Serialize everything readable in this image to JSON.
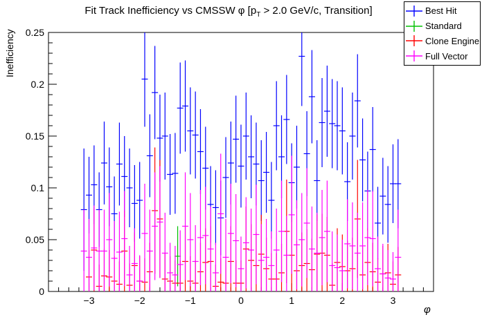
{
  "title": {
    "pre": "Fit Track Inefficiency vs CMSSW φ [p",
    "sub": "T",
    "post": " > 2.0 GeV/c, Transition]"
  },
  "legend": {
    "items": [
      {
        "label": "Best Hit",
        "color": "#0000ff"
      },
      {
        "label": "Standard",
        "color": "#00c000"
      },
      {
        "label": "Clone Engine",
        "color": "#ff0000"
      },
      {
        "label": "Full Vector",
        "color": "#ff00ff"
      }
    ]
  },
  "axes": {
    "x": {
      "label": "φ",
      "min": -3.8,
      "max": 3.8,
      "major_ticks": [
        -3,
        -2,
        -1,
        0,
        1,
        2,
        3
      ],
      "tick_labels": [
        "−3",
        "−2",
        "−1",
        "0",
        "1",
        "2",
        "3"
      ],
      "minor_step": 0.2
    },
    "y": {
      "label": "Inefficiency",
      "min": 0,
      "max": 0.25,
      "major_ticks": [
        0,
        0.05,
        0.1,
        0.15,
        0.2,
        0.25
      ],
      "tick_labels": [
        "0",
        "0.05",
        "0.1",
        "0.15",
        "0.2",
        "0.25"
      ],
      "minor_step": 0.01
    }
  },
  "chart_data": {
    "type": "scatter",
    "title": "Fit Track Inefficiency vs CMSSW φ [pT > 2.0 GeV/c, Transition]",
    "xlabel": "φ",
    "ylabel": "Inefficiency",
    "xlim": [
      -3.8,
      3.8
    ],
    "ylim": [
      0,
      0.25
    ],
    "grid": false,
    "legend_position": "top-right",
    "point_format": [
      "phi",
      "inefficiency",
      "error"
    ],
    "series": [
      {
        "name": "Best Hit",
        "color": "#0000ff",
        "points": [
          [
            -3.1,
            0.079,
            0.059
          ],
          [
            -3.0,
            0.093,
            0.037
          ],
          [
            -2.9,
            0.103,
            0.038
          ],
          [
            -2.8,
            0.079,
            0.036
          ],
          [
            -2.7,
            0.124,
            0.04
          ],
          [
            -2.6,
            0.101,
            0.038
          ],
          [
            -2.5,
            0.075,
            0.036
          ],
          [
            -2.4,
            0.123,
            0.04
          ],
          [
            -2.3,
            0.111,
            0.039
          ],
          [
            -2.2,
            0.1,
            0.038
          ],
          [
            -2.1,
            0.085,
            0.037
          ],
          [
            -2.0,
            0.088,
            0.037
          ],
          [
            -1.9,
            0.205,
            0.046
          ],
          [
            -1.8,
            0.131,
            0.04
          ],
          [
            -1.7,
            0.192,
            0.045
          ],
          [
            -1.6,
            0.148,
            0.042
          ],
          [
            -1.5,
            0.15,
            0.042
          ],
          [
            -1.4,
            0.113,
            0.039
          ],
          [
            -1.3,
            0.114,
            0.039
          ],
          [
            -1.2,
            0.177,
            0.044
          ],
          [
            -1.1,
            0.179,
            0.044
          ],
          [
            -1.0,
            0.155,
            0.042
          ],
          [
            -0.9,
            0.151,
            0.042
          ],
          [
            -0.8,
            0.135,
            0.041
          ],
          [
            -0.7,
            0.119,
            0.04
          ],
          [
            -0.6,
            0.084,
            0.037
          ],
          [
            -0.5,
            0.081,
            0.036
          ],
          [
            -0.4,
            0.071,
            0.036
          ],
          [
            -0.3,
            0.11,
            0.039
          ],
          [
            -0.2,
            0.124,
            0.04
          ],
          [
            -0.1,
            0.147,
            0.042
          ],
          [
            0.0,
            0.121,
            0.04
          ],
          [
            0.1,
            0.15,
            0.042
          ],
          [
            0.2,
            0.13,
            0.04
          ],
          [
            0.3,
            0.123,
            0.04
          ],
          [
            0.4,
            0.107,
            0.039
          ],
          [
            0.5,
            0.115,
            0.039
          ],
          [
            0.6,
            0.088,
            0.037
          ],
          [
            0.7,
            0.16,
            0.043
          ],
          [
            0.8,
            0.13,
            0.04
          ],
          [
            0.9,
            0.166,
            0.043
          ],
          [
            1.0,
            0.105,
            0.038
          ],
          [
            1.1,
            0.12,
            0.04
          ],
          [
            1.2,
            0.227,
            0.048
          ],
          [
            1.3,
            0.133,
            0.041
          ],
          [
            1.4,
            0.188,
            0.045
          ],
          [
            1.5,
            0.107,
            0.039
          ],
          [
            1.6,
            0.163,
            0.043
          ],
          [
            1.7,
            0.174,
            0.044
          ],
          [
            1.8,
            0.162,
            0.043
          ],
          [
            1.9,
            0.16,
            0.043
          ],
          [
            2.0,
            0.155,
            0.042
          ],
          [
            2.1,
            0.106,
            0.038
          ],
          [
            2.2,
            0.15,
            0.042
          ],
          [
            2.3,
            0.184,
            0.045
          ],
          [
            2.4,
            0.127,
            0.04
          ],
          [
            2.5,
            0.097,
            0.038
          ],
          [
            2.6,
            0.137,
            0.041
          ],
          [
            2.7,
            0.066,
            0.035
          ],
          [
            2.8,
            0.092,
            0.037
          ],
          [
            2.9,
            0.084,
            0.037
          ],
          [
            3.0,
            0.104,
            0.038
          ],
          [
            3.1,
            0.104,
            0.043
          ]
        ]
      },
      {
        "name": "Standard",
        "color": "#00c000",
        "points": [
          [
            -1.25,
            0.034,
            0.029
          ]
        ]
      },
      {
        "name": "Clone Engine",
        "color": "#ff0000",
        "points": [
          [
            -3.0,
            0.014,
            0.026
          ],
          [
            -2.9,
            0.04,
            0.04
          ],
          [
            -2.8,
            0.005,
            0.021
          ],
          [
            -2.7,
            0.015,
            0.026
          ],
          [
            -2.6,
            0.014,
            0.026
          ],
          [
            -2.5,
            0.01,
            0.024
          ],
          [
            -2.4,
            0.007,
            0.022
          ],
          [
            -2.3,
            0.039,
            0.039
          ],
          [
            -2.2,
            0.006,
            0.021
          ],
          [
            -2.1,
            0.025,
            0.032
          ],
          [
            -2.0,
            0.01,
            0.024
          ],
          [
            -1.9,
            0.009,
            0.023
          ],
          [
            -1.8,
            0.019,
            0.028
          ],
          [
            -1.7,
            0.078,
            0.061
          ],
          [
            -1.6,
            0.07,
            0.057
          ],
          [
            -1.5,
            0.012,
            0.025
          ],
          [
            -1.4,
            0.01,
            0.024
          ],
          [
            -1.3,
            0.008,
            0.022
          ],
          [
            -1.2,
            0.008,
            0.022
          ],
          [
            -1.1,
            0.029,
            0.034
          ],
          [
            -1.0,
            0.01,
            0.024
          ],
          [
            -0.9,
            0.008,
            0.022
          ],
          [
            -0.8,
            0.019,
            0.028
          ],
          [
            -0.7,
            0.028,
            0.033
          ],
          [
            -0.6,
            0.029,
            0.034
          ],
          [
            -0.5,
            0.005,
            0.021
          ],
          [
            -0.4,
            0.009,
            0.023
          ],
          [
            -0.3,
            0.008,
            0.022
          ],
          [
            -0.2,
            0.029,
            0.034
          ],
          [
            -0.1,
            0.008,
            0.022
          ],
          [
            0.0,
            0.008,
            0.022
          ],
          [
            0.1,
            0.041,
            0.041
          ],
          [
            0.2,
            0.03,
            0.035
          ],
          [
            0.3,
            0.025,
            0.032
          ],
          [
            0.4,
            0.036,
            0.038
          ],
          [
            0.5,
            0.022,
            0.03
          ],
          [
            0.6,
            0.012,
            0.025
          ],
          [
            0.7,
            0.012,
            0.025
          ],
          [
            0.8,
            0.018,
            0.028
          ],
          [
            0.9,
            0.058,
            0.05
          ],
          [
            1.0,
            0.035,
            0.037
          ],
          [
            1.1,
            0.02,
            0.029
          ],
          [
            1.2,
            0.025,
            0.032
          ],
          [
            1.3,
            0.027,
            0.033
          ],
          [
            1.4,
            0.021,
            0.03
          ],
          [
            1.5,
            0.036,
            0.038
          ],
          [
            1.6,
            0.037,
            0.038
          ],
          [
            1.7,
            0.035,
            0.037
          ],
          [
            1.8,
            0.006,
            0.021
          ],
          [
            1.9,
            0.028,
            0.033
          ],
          [
            2.0,
            0.024,
            0.031
          ],
          [
            2.1,
            0.02,
            0.029
          ],
          [
            2.2,
            0.022,
            0.03
          ],
          [
            2.3,
            0.07,
            0.057
          ],
          [
            2.4,
            0.016,
            0.027
          ],
          [
            2.5,
            0.028,
            0.033
          ],
          [
            2.6,
            0.019,
            0.028
          ],
          [
            2.7,
            0.009,
            0.023
          ],
          [
            2.8,
            0.017,
            0.027
          ],
          [
            2.9,
            0.018,
            0.028
          ],
          [
            3.0,
            0.007,
            0.022
          ],
          [
            3.1,
            0.016,
            0.027
          ]
        ]
      },
      {
        "name": "Full Vector",
        "color": "#ff00ff",
        "points": [
          [
            -3.1,
            0.039,
            0.04
          ],
          [
            -3.0,
            0.033,
            0.037
          ],
          [
            -2.9,
            0.042,
            0.041
          ],
          [
            -2.8,
            0.039,
            0.04
          ],
          [
            -2.7,
            0.039,
            0.04
          ],
          [
            -2.6,
            0.05,
            0.045
          ],
          [
            -2.5,
            0.032,
            0.036
          ],
          [
            -2.4,
            0.038,
            0.039
          ],
          [
            -2.3,
            0.051,
            0.046
          ],
          [
            -2.2,
            0.016,
            0.028
          ],
          [
            -2.1,
            0.027,
            0.034
          ],
          [
            -2.0,
            0.01,
            0.025
          ],
          [
            -1.9,
            0.056,
            0.048
          ],
          [
            -1.8,
            0.039,
            0.04
          ],
          [
            -1.7,
            0.063,
            0.052
          ],
          [
            -1.6,
            0.067,
            0.054
          ],
          [
            -1.5,
            0.037,
            0.039
          ],
          [
            -1.4,
            0.018,
            0.029
          ],
          [
            -1.3,
            0.016,
            0.028
          ],
          [
            -1.2,
            0.026,
            0.033
          ],
          [
            -1.1,
            0.063,
            0.052
          ],
          [
            -1.0,
            0.05,
            0.045
          ],
          [
            -0.9,
            0.029,
            0.035
          ],
          [
            -0.8,
            0.052,
            0.046
          ],
          [
            -0.7,
            0.054,
            0.047
          ],
          [
            -0.6,
            0.041,
            0.041
          ],
          [
            -0.5,
            0.018,
            0.029
          ],
          [
            -0.4,
            0.075,
            0.058
          ],
          [
            -0.3,
            0.033,
            0.037
          ],
          [
            -0.2,
            0.056,
            0.048
          ],
          [
            -0.1,
            0.049,
            0.045
          ],
          [
            0.0,
            0.022,
            0.031
          ],
          [
            0.1,
            0.047,
            0.044
          ],
          [
            0.2,
            0.04,
            0.04
          ],
          [
            0.3,
            0.055,
            0.048
          ],
          [
            0.4,
            0.03,
            0.035
          ],
          [
            0.5,
            0.033,
            0.037
          ],
          [
            0.6,
            0.025,
            0.033
          ],
          [
            0.7,
            0.04,
            0.04
          ],
          [
            0.8,
            0.058,
            0.049
          ],
          [
            0.9,
            0.035,
            0.038
          ],
          [
            1.0,
            0.074,
            0.057
          ],
          [
            1.1,
            0.045,
            0.043
          ],
          [
            1.2,
            0.05,
            0.045
          ],
          [
            1.3,
            0.066,
            0.053
          ],
          [
            1.4,
            0.041,
            0.041
          ],
          [
            1.5,
            0.037,
            0.039
          ],
          [
            1.6,
            0.052,
            0.046
          ],
          [
            1.7,
            0.058,
            0.049
          ],
          [
            1.8,
            0.025,
            0.033
          ],
          [
            1.9,
            0.023,
            0.032
          ],
          [
            2.0,
            0.02,
            0.03
          ],
          [
            2.1,
            0.046,
            0.043
          ],
          [
            2.2,
            0.044,
            0.042
          ],
          [
            2.3,
            0.037,
            0.039
          ],
          [
            2.4,
            0.044,
            0.042
          ],
          [
            2.5,
            0.052,
            0.046
          ],
          [
            2.6,
            0.051,
            0.046
          ],
          [
            2.7,
            0.022,
            0.031
          ],
          [
            2.8,
            0.017,
            0.029
          ],
          [
            2.9,
            0.013,
            0.027
          ],
          [
            3.0,
            0.012,
            0.026
          ],
          [
            3.1,
            0.033,
            0.046
          ]
        ]
      }
    ]
  }
}
